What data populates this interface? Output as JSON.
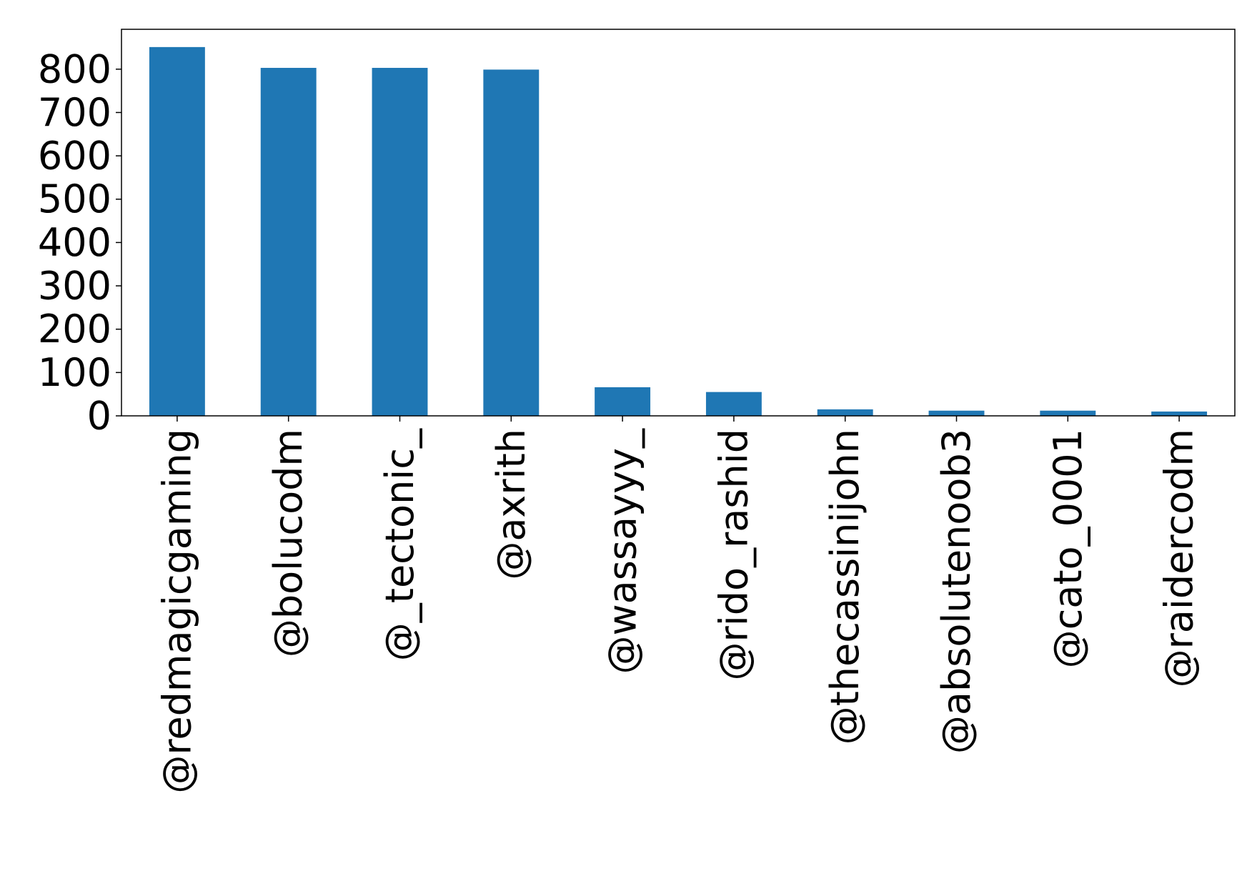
{
  "chart_data": {
    "type": "bar",
    "title": "",
    "xlabel": "",
    "ylabel": "",
    "categories": [
      "@redmagicgaming",
      "@bolucodm",
      "@_tectonic_",
      "@axrith",
      "@wassayyy_",
      "@rido_rashid",
      "@thecassinijohn",
      "@absolutenoob3",
      "@cato_0001",
      "@raidercodm"
    ],
    "values": [
      851,
      803,
      803,
      799,
      66,
      55,
      15,
      12,
      12,
      10
    ],
    "ylim": [
      0,
      892
    ],
    "yticks": [
      0,
      100,
      200,
      300,
      400,
      500,
      600,
      700,
      800
    ],
    "grid": false,
    "bar_color": "#1f77b4"
  }
}
